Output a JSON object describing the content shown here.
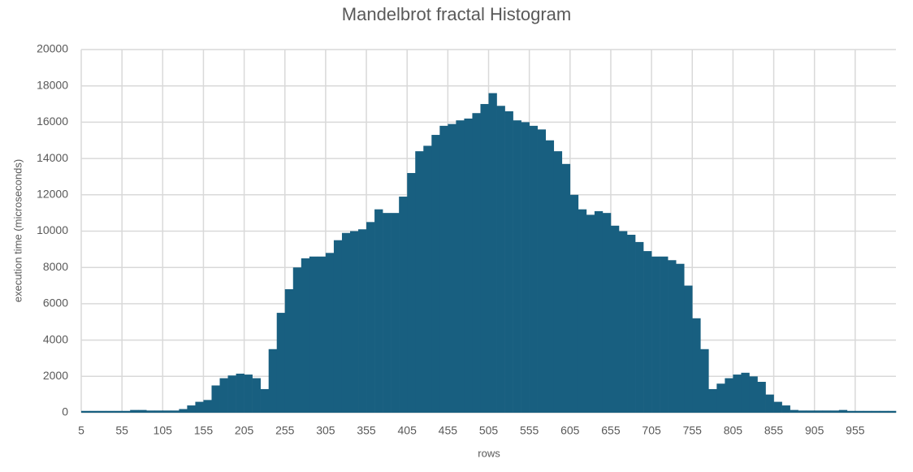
{
  "chart_data": {
    "type": "histogram",
    "title": "Mandelbrot fractal Histogram",
    "x_label": "rows",
    "y_label": "execution time (microseconds)",
    "color": "#185f80",
    "grid": true,
    "bins": [
      5,
      15,
      25,
      35,
      45,
      55,
      65,
      75,
      85,
      95,
      105,
      115,
      125,
      135,
      145,
      155,
      165,
      175,
      185,
      195,
      205,
      215,
      225,
      235,
      245,
      255,
      265,
      275,
      285,
      295,
      305,
      315,
      325,
      335,
      345,
      355,
      365,
      375,
      385,
      395,
      405,
      415,
      425,
      435,
      445,
      455,
      465,
      475,
      485,
      495,
      505,
      515,
      525,
      535,
      545,
      555,
      565,
      575,
      585,
      595,
      605,
      615,
      625,
      635,
      645,
      655,
      665,
      675,
      685,
      695,
      705,
      715,
      725,
      735,
      745,
      755,
      765,
      775,
      785,
      795,
      805,
      815,
      825,
      835,
      845,
      855,
      865,
      875,
      885,
      895,
      905,
      915,
      925,
      935,
      945,
      955,
      965,
      975,
      985,
      995,
      1005
    ],
    "values": [
      100,
      100,
      100,
      100,
      100,
      100,
      150,
      150,
      120,
      120,
      120,
      120,
      200,
      400,
      600,
      700,
      1500,
      1900,
      2050,
      2150,
      2100,
      1900,
      1300,
      3500,
      5500,
      6800,
      8000,
      8500,
      8600,
      8600,
      8800,
      9500,
      9900,
      10000,
      10100,
      10500,
      11200,
      11000,
      11000,
      11900,
      13200,
      14400,
      14700,
      15300,
      15800,
      15900,
      16100,
      16200,
      16500,
      17000,
      17600,
      16900,
      16600,
      16100,
      16000,
      15800,
      15600,
      15000,
      14400,
      13700,
      12000,
      11200,
      10900,
      11100,
      11000,
      10300,
      10000,
      9800,
      9400,
      8900,
      8600,
      8600,
      8400,
      8200,
      7000,
      5200,
      3500,
      1300,
      1600,
      1900,
      2100,
      2200,
      2000,
      1700,
      1000,
      600,
      400,
      150,
      120,
      120,
      120,
      120,
      120,
      150,
      100,
      100,
      100,
      100,
      100,
      100
    ],
    "xlim": [
      5,
      1005
    ],
    "xticks": [
      5,
      55,
      105,
      155,
      205,
      255,
      305,
      355,
      405,
      455,
      505,
      555,
      605,
      655,
      705,
      755,
      805,
      855,
      905,
      955
    ],
    "ylim": [
      0,
      20000
    ],
    "yticks": [
      0,
      2000,
      4000,
      6000,
      8000,
      10000,
      12000,
      14000,
      16000,
      18000,
      20000
    ]
  }
}
